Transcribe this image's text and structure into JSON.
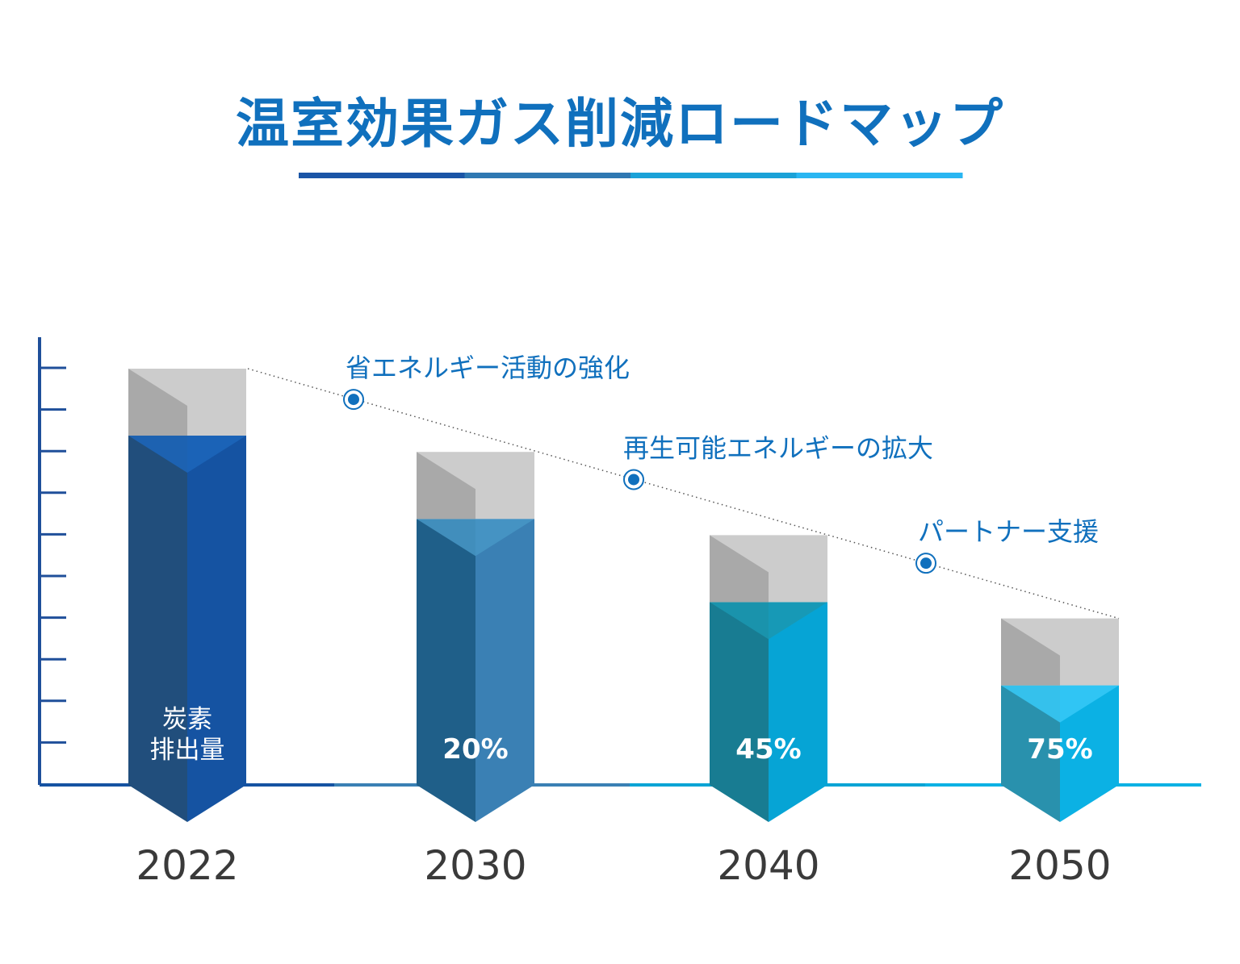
{
  "title": "温室効果ガス削減ロードマップ",
  "colors": {
    "title": "#1070bd",
    "underline": [
      "#1a55a6",
      "#2f78b2",
      "#1aa2d8",
      "#29b6f2"
    ],
    "axis": "#1f4f9a",
    "cap_light": "#cccccc",
    "cap_dark": "#a9a9a9",
    "annotation": "#1070bd",
    "year_text": "#3a3a3a"
  },
  "chart_data": {
    "type": "bar",
    "categories": [
      "2022",
      "2030",
      "2040",
      "2050"
    ],
    "bar_labels": [
      "炭素\n排出量",
      "20%",
      "45%",
      "75%"
    ],
    "reduction_percent": [
      0,
      20,
      45,
      75
    ],
    "relative_height": [
      100,
      80,
      60,
      40
    ],
    "bar_colors": [
      {
        "left": "#214e7c",
        "right": "#1553a2",
        "tip": "#1c66bb"
      },
      {
        "left": "#1f5f89",
        "right": "#3a80b4",
        "tip": "#4896c6"
      },
      {
        "left": "#187c92",
        "right": "#06a4d5",
        "tip": "#1b98b0"
      },
      {
        "left": "#2991ad",
        "right": "#0bb1e4",
        "tip": "#37c9f7"
      }
    ],
    "annotations": [
      {
        "label": "省エネルギー活動の強化"
      },
      {
        "label": "再生可能エネルギーの拡大"
      },
      {
        "label": "パートナー支援"
      }
    ],
    "ticks": 10,
    "grid": false,
    "trend_line": "dotted"
  }
}
